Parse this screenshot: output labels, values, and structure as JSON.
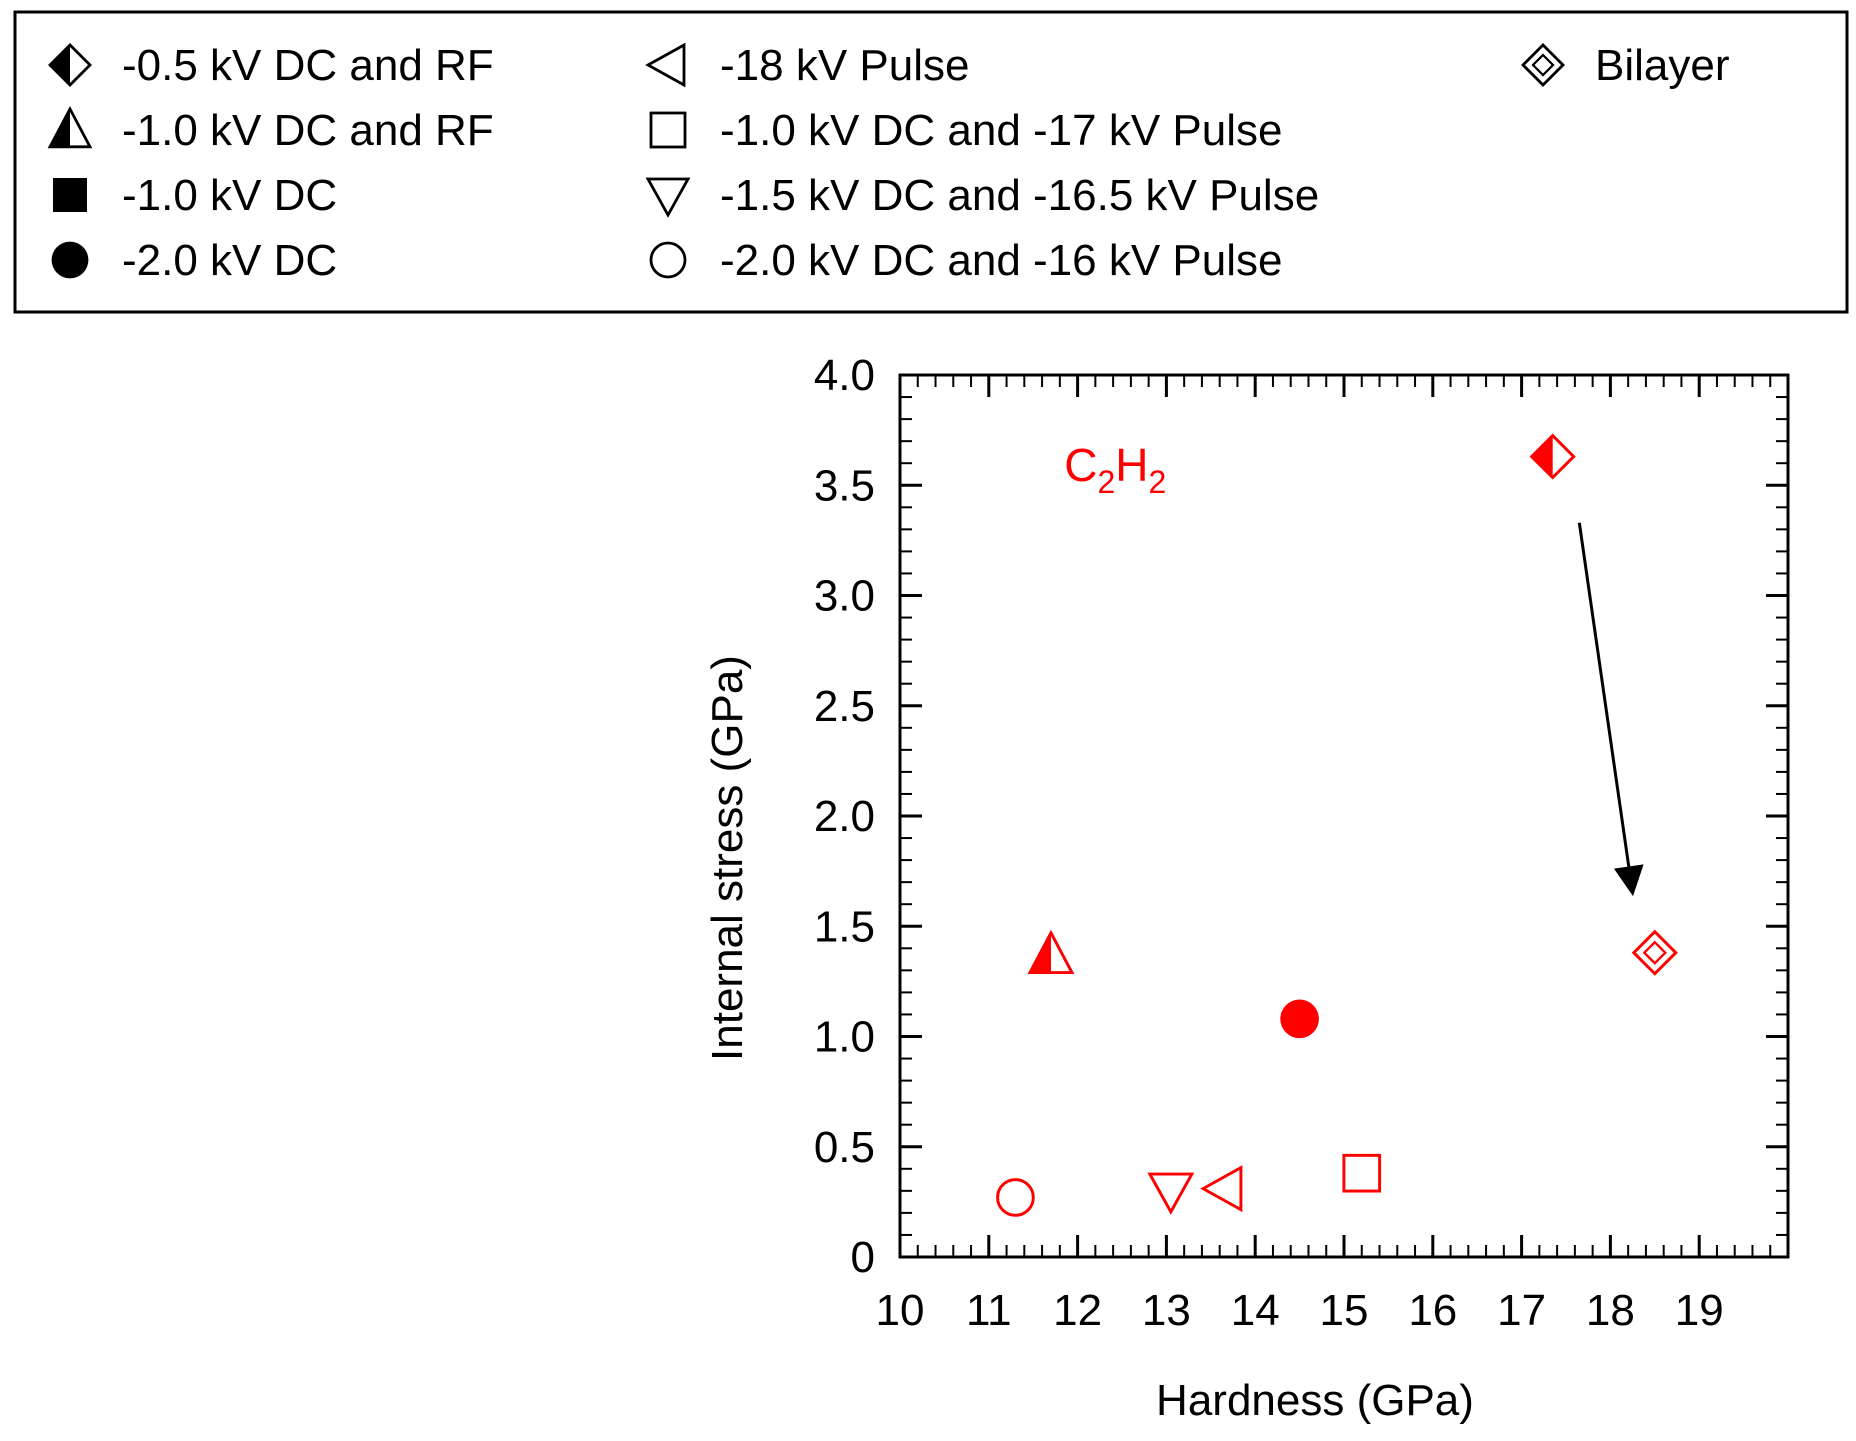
{
  "colors": {
    "ink": "#000000",
    "marker": "#ff0000",
    "background": "#ffffff"
  },
  "legend": {
    "entries": [
      {
        "label": "-0.5 kV DC and RF",
        "icon": "half-filled-diamond"
      },
      {
        "label": "-1.0 kV DC and RF",
        "icon": "half-filled-triangle-up"
      },
      {
        "label": "-1.0 kV DC",
        "icon": "filled-square"
      },
      {
        "label": "-2.0 kV DC",
        "icon": "filled-circle"
      },
      {
        "label": "-18 kV Pulse",
        "icon": "open-triangle-left"
      },
      {
        "label": "-1.0 kV DC and -17 kV Pulse",
        "icon": "open-square"
      },
      {
        "label": "-1.5 kV DC and -16.5 kV Pulse",
        "icon": "open-triangle-down"
      },
      {
        "label": "-2.0 kV DC and -16 kV Pulse",
        "icon": "open-circle"
      },
      {
        "label": "Bilayer",
        "icon": "double-diamond"
      }
    ]
  },
  "chart_data": {
    "type": "scatter",
    "title": "",
    "xlabel": "Hardness (GPa)",
    "ylabel": "Internal stress (GPa)",
    "xlim": [
      10,
      20
    ],
    "ylim": [
      0,
      4.0
    ],
    "grid": false,
    "xticks": [
      "10",
      "11",
      "12",
      "13",
      "14",
      "15",
      "16",
      "17",
      "18",
      "19"
    ],
    "yticks": [
      "0",
      "0.5",
      "1.0",
      "1.5",
      "2.0",
      "2.5",
      "3.0",
      "3.5",
      "4.0"
    ],
    "annotation": {
      "text_main": "C",
      "sub1": "2",
      "mid": "H",
      "sub2": "2",
      "x": 11.85,
      "y": 3.52
    },
    "arrow": {
      "from": [
        17.65,
        3.33
      ],
      "to": [
        18.25,
        1.65
      ]
    },
    "series": [
      {
        "name": "-0.5 kV DC and RF",
        "marker": "half-filled-diamond",
        "x": 17.35,
        "y": 3.63
      },
      {
        "name": "-1.0 kV DC and RF",
        "marker": "half-filled-triangle-up",
        "x": 11.7,
        "y": 1.37
      },
      {
        "name": "-2.0 kV DC",
        "marker": "filled-circle",
        "x": 14.5,
        "y": 1.08
      },
      {
        "name": "-2.0 kV DC and -16 kV Pulse",
        "marker": "open-circle",
        "x": 11.3,
        "y": 0.27
      },
      {
        "name": "-1.5 kV DC and -16.5 kV Pulse",
        "marker": "open-triangle-down",
        "x": 13.05,
        "y": 0.3
      },
      {
        "name": "-18 kV Pulse",
        "marker": "open-triangle-left",
        "x": 13.65,
        "y": 0.31
      },
      {
        "name": "-1.0 kV DC and -17 kV Pulse",
        "marker": "open-square",
        "x": 15.2,
        "y": 0.38
      },
      {
        "name": "Bilayer",
        "marker": "double-diamond",
        "x": 18.5,
        "y": 1.38
      }
    ]
  }
}
